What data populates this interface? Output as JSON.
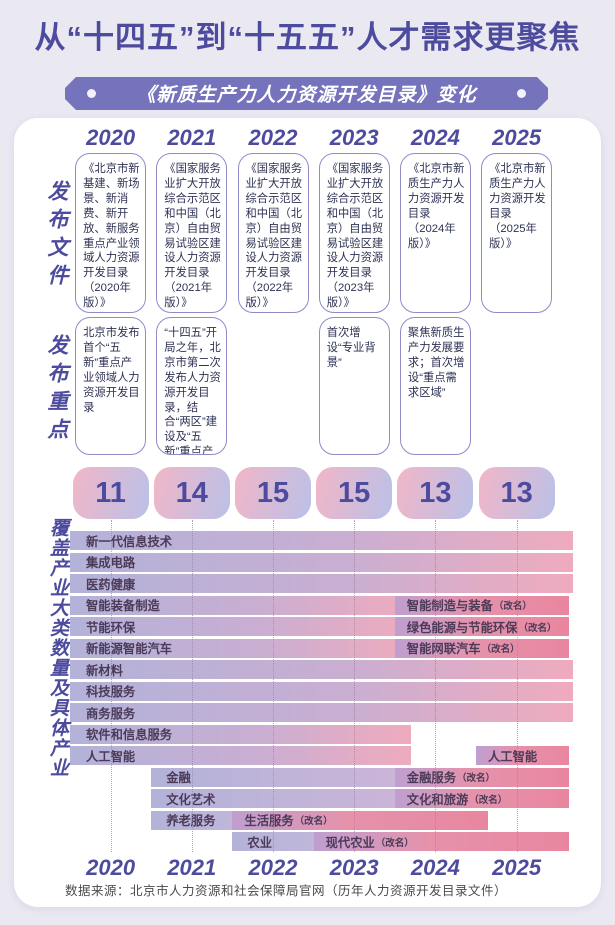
{
  "title": "从“十四五”到“十五五”人才需求更聚焦",
  "banner": {
    "label": "《新质生产力人力资源开发目录》变化"
  },
  "row_labels": {
    "documents": "发布文件",
    "focus": "发布重点",
    "chart": "覆盖产业大类数量及具体产业"
  },
  "years": [
    "2020",
    "2021",
    "2022",
    "2023",
    "2024",
    "2025"
  ],
  "documents": [
    "《北京市新基建、新场景、新消费、新开放、新服务重点产业领域人力资源开发目录（2020年版）》",
    "《国家服务业扩大开放综合示范区和中国（北京）自由贸易试验区建设人力资源开发目录（2021年版）》",
    "《国家服务业扩大开放综合示范区和中国（北京）自由贸易试验区建设人力资源开发目录（2022年版）》",
    "《国家服务业扩大开放综合示范区和中国（北京）自由贸易试验区建设人力资源开发目录（2023年版）》",
    "《北京市新质生产力人力资源开发目录（2024年版）》",
    "《北京市新质生产力人力资源开发目录（2025年版）》"
  ],
  "focus": [
    "北京市发布首个“五新”重点产业领域人力资源开发目录",
    "“十四五”开局之年，北京市第二次发布人力资源开发目录，结合“两区”建设及“五新”重点产业领域发展需要",
    "",
    "首次增设“专业背景”",
    "聚焦新质生产力发展要求；首次增设“重点需求区域”",
    ""
  ],
  "chart_data": {
    "type": "bar",
    "variant": "timeline-gantt",
    "title": "《新质生产力人力资源开发目录》变化",
    "x": [
      "2020",
      "2021",
      "2022",
      "2023",
      "2024",
      "2025"
    ],
    "category_counts": {
      "label": "覆盖产业大类数量",
      "years": [
        "2020",
        "2021",
        "2022",
        "2023",
        "2024",
        "2025"
      ],
      "values": [
        11,
        14,
        15,
        15,
        13,
        13
      ]
    },
    "rows": [
      {
        "segments": [
          {
            "label": "新一代信息技术",
            "from": 0,
            "to": 6,
            "style": "full"
          }
        ]
      },
      {
        "segments": [
          {
            "label": "集成电路",
            "from": 0,
            "to": 6,
            "style": "full"
          }
        ]
      },
      {
        "segments": [
          {
            "label": "医药健康",
            "from": 0,
            "to": 6,
            "style": "full"
          }
        ]
      },
      {
        "segments": [
          {
            "label": "智能装备制造",
            "from": 0,
            "to": 4,
            "style": "full"
          },
          {
            "label": "智能制造与装备",
            "suffix": "（改名）",
            "from": 4,
            "to": 6,
            "style": "renamed"
          }
        ]
      },
      {
        "segments": [
          {
            "label": "节能环保",
            "from": 0,
            "to": 4,
            "style": "full"
          },
          {
            "label": "绿色能源与节能环保",
            "suffix": "（改名）",
            "from": 4,
            "to": 6,
            "style": "renamed"
          }
        ]
      },
      {
        "segments": [
          {
            "label": "新能源智能汽车",
            "from": 0,
            "to": 4,
            "style": "full"
          },
          {
            "label": "智能网联汽车",
            "suffix": "（改名）",
            "from": 4,
            "to": 6,
            "style": "renamed"
          }
        ]
      },
      {
        "segments": [
          {
            "label": "新材料",
            "from": 0,
            "to": 6,
            "style": "full"
          }
        ]
      },
      {
        "segments": [
          {
            "label": "科技服务",
            "from": 0,
            "to": 6,
            "style": "full"
          }
        ]
      },
      {
        "segments": [
          {
            "label": "商务服务",
            "from": 0,
            "to": 6,
            "style": "full"
          }
        ]
      },
      {
        "segments": [
          {
            "label": "软件和信息服务",
            "from": 0,
            "to": 4,
            "style": "full"
          }
        ]
      },
      {
        "segments": [
          {
            "label": "人工智能",
            "from": 0,
            "to": 4,
            "style": "full"
          },
          {
            "label": "人工智能",
            "from": 5,
            "to": 6,
            "style": "renamed"
          }
        ]
      },
      {
        "segments": [
          {
            "label": "金融",
            "from": 1,
            "to": 4,
            "style": "mid"
          },
          {
            "label": "金融服务",
            "suffix": "（改名）",
            "from": 4,
            "to": 6,
            "style": "renamed"
          }
        ]
      },
      {
        "segments": [
          {
            "label": "文化艺术",
            "from": 1,
            "to": 4,
            "style": "mid"
          },
          {
            "label": "文化和旅游",
            "suffix": "（改名）",
            "from": 4,
            "to": 6,
            "style": "renamed"
          }
        ]
      },
      {
        "segments": [
          {
            "label": "养老服务",
            "from": 1,
            "to": 2,
            "style": "short"
          },
          {
            "label": "生活服务",
            "suffix": "（改名）",
            "from": 2,
            "to": 5,
            "style": "renamed"
          }
        ]
      },
      {
        "segments": [
          {
            "label": "农业",
            "from": 2,
            "to": 3,
            "style": "short"
          },
          {
            "label": "现代农业",
            "suffix": "（改名）",
            "from": 3,
            "to": 6,
            "style": "renamed"
          }
        ]
      }
    ]
  },
  "source": "数据来源：北京市人力资源和社会保障局官网（历年人力资源开发目录文件）",
  "colors": {
    "page_bg": "#eae8f1",
    "accent": "#4d4b9e",
    "banner_bg": "#7573bb",
    "box_border": "#8d8bc8",
    "pill_start": "#f2b6c7",
    "pill_end": "#b9c1e8",
    "bar_base_start": "#b3b2d9",
    "bar_base_end": "#efabbe",
    "bar_renamed_start": "#bf9fd0",
    "bar_renamed_end": "#e9869f"
  }
}
